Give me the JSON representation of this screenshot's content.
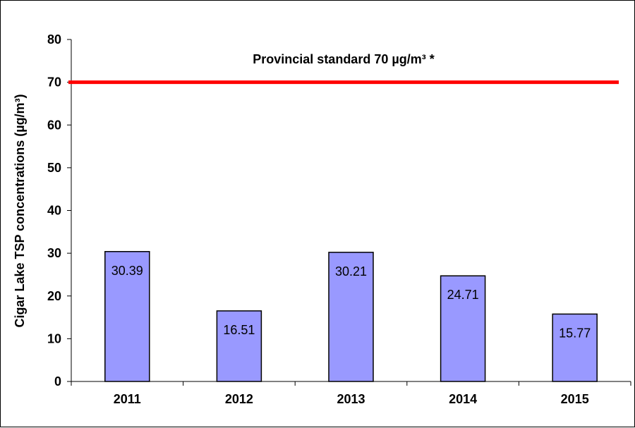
{
  "chart_data": {
    "type": "bar",
    "categories": [
      "2011",
      "2012",
      "2013",
      "2014",
      "2015"
    ],
    "values": [
      30.39,
      16.51,
      30.21,
      24.71,
      15.77
    ],
    "data_labels": [
      "30.39",
      "16.51",
      "30.21",
      "24.71",
      "15.77"
    ],
    "title": "",
    "xlabel": "",
    "ylabel": "Cigar Lake TSP concentrations (µg/m³)",
    "ylim": [
      0,
      80
    ],
    "yticks": [
      0,
      10,
      20,
      30,
      40,
      50,
      60,
      70,
      80
    ],
    "grid": false,
    "reference_line": {
      "value": 70,
      "label": "Provincial standard 70 µg/m³ *",
      "color": "#ff0000"
    },
    "bar_color": "#9999ff",
    "bar_border": "#000000"
  }
}
